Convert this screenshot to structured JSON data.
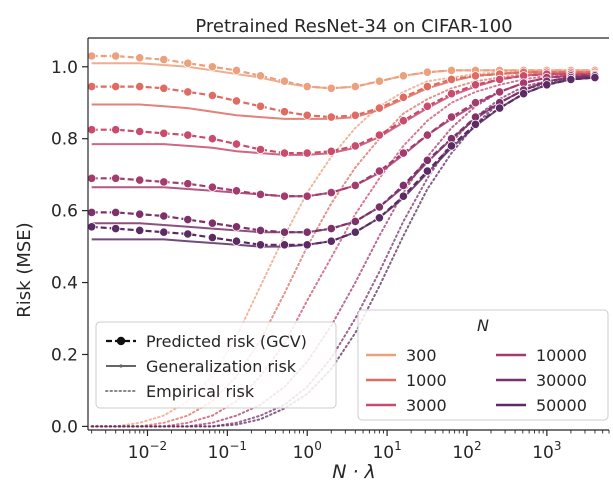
{
  "chart_data": {
    "type": "line",
    "title": "Pretrained ResNet-34 on CIFAR-100",
    "xlabel": "N · λ",
    "ylabel": "Risk (MSE)",
    "xscale": "log",
    "xlim": [
      0.0018,
      6000
    ],
    "ylim": [
      -0.01,
      1.08
    ],
    "xticks": [
      {
        "value": 0.01,
        "label": "10",
        "exp": "−2"
      },
      {
        "value": 0.1,
        "label": "10",
        "exp": "−1"
      },
      {
        "value": 1,
        "label": "10",
        "exp": "0"
      },
      {
        "value": 10,
        "label": "10",
        "exp": "1"
      },
      {
        "value": 100,
        "label": "10",
        "exp": "2"
      },
      {
        "value": 1000,
        "label": "10",
        "exp": "3"
      }
    ],
    "yticks": [
      "0.0",
      "0.2",
      "0.4",
      "0.6",
      "0.8",
      "1.0"
    ],
    "ytick_values": [
      0.0,
      0.2,
      0.4,
      0.6,
      0.8,
      1.0
    ],
    "grid": false,
    "legend_style": {
      "title": "",
      "position": "lower-left",
      "entries": [
        {
          "label": "Predicted risk (GCV)",
          "style": "dashed-markers"
        },
        {
          "label": "Generalization risk",
          "style": "solid"
        },
        {
          "label": "Empirical risk",
          "style": "dotted"
        }
      ]
    },
    "legend_N": {
      "title": "N",
      "position": "lower-right",
      "entries": [
        {
          "label": "300",
          "color": "#eba07e"
        },
        {
          "label": "1000",
          "color": "#de6c62"
        },
        {
          "label": "3000",
          "color": "#c94c6e"
        },
        {
          "label": "10000",
          "color": "#a33b6f"
        },
        {
          "label": "30000",
          "color": "#7c3169"
        },
        {
          "label": "50000",
          "color": "#5b2b63"
        }
      ]
    },
    "x": [
      0.002,
      0.004,
      0.008,
      0.016,
      0.032,
      0.065,
      0.13,
      0.26,
      0.52,
      1.0,
      2.0,
      4.0,
      8.0,
      16,
      32,
      64,
      128,
      256,
      512,
      1000,
      2000,
      4000
    ],
    "series": [
      {
        "name": "300",
        "color": "#eba07e",
        "predicted": [
          1.03,
          1.03,
          1.025,
          1.02,
          1.01,
          1.0,
          0.99,
          0.975,
          0.96,
          0.945,
          0.94,
          0.945,
          0.96,
          0.975,
          0.985,
          0.99,
          0.99,
          0.99,
          0.99,
          0.99,
          0.99,
          0.99
        ],
        "generalization": [
          1.01,
          1.01,
          1.01,
          1.005,
          1.0,
          0.99,
          0.98,
          0.97,
          0.955,
          0.945,
          0.94,
          0.945,
          0.96,
          0.975,
          0.985,
          0.99,
          0.99,
          0.99,
          0.99,
          0.99,
          0.99,
          0.99
        ],
        "empirical": [
          0.0,
          0.0,
          0.01,
          0.03,
          0.07,
          0.14,
          0.25,
          0.39,
          0.53,
          0.65,
          0.75,
          0.83,
          0.89,
          0.93,
          0.96,
          0.97,
          0.98,
          0.985,
          0.985,
          0.99,
          0.99,
          0.99
        ]
      },
      {
        "name": "1000",
        "color": "#de6c62",
        "predicted": [
          0.945,
          0.945,
          0.945,
          0.94,
          0.93,
          0.92,
          0.905,
          0.89,
          0.875,
          0.865,
          0.86,
          0.865,
          0.885,
          0.915,
          0.945,
          0.965,
          0.975,
          0.98,
          0.985,
          0.985,
          0.985,
          0.985
        ],
        "generalization": [
          0.895,
          0.895,
          0.895,
          0.89,
          0.885,
          0.875,
          0.865,
          0.86,
          0.855,
          0.855,
          0.855,
          0.86,
          0.88,
          0.91,
          0.94,
          0.96,
          0.975,
          0.98,
          0.985,
          0.985,
          0.985,
          0.985
        ],
        "empirical": [
          0.0,
          0.0,
          0.0,
          0.01,
          0.03,
          0.07,
          0.14,
          0.24,
          0.37,
          0.5,
          0.62,
          0.72,
          0.8,
          0.87,
          0.91,
          0.94,
          0.96,
          0.97,
          0.98,
          0.98,
          0.985,
          0.985
        ]
      },
      {
        "name": "3000",
        "color": "#c94c6e",
        "predicted": [
          0.825,
          0.825,
          0.82,
          0.815,
          0.81,
          0.8,
          0.785,
          0.77,
          0.76,
          0.76,
          0.765,
          0.78,
          0.81,
          0.85,
          0.89,
          0.925,
          0.95,
          0.965,
          0.975,
          0.98,
          0.98,
          0.98
        ],
        "generalization": [
          0.785,
          0.785,
          0.785,
          0.785,
          0.78,
          0.775,
          0.765,
          0.76,
          0.755,
          0.755,
          0.76,
          0.775,
          0.805,
          0.845,
          0.885,
          0.92,
          0.945,
          0.965,
          0.975,
          0.98,
          0.98,
          0.98
        ],
        "empirical": [
          0.0,
          0.0,
          0.0,
          0.0,
          0.01,
          0.03,
          0.07,
          0.14,
          0.23,
          0.35,
          0.47,
          0.59,
          0.69,
          0.78,
          0.85,
          0.9,
          0.93,
          0.95,
          0.965,
          0.975,
          0.98,
          0.98
        ]
      },
      {
        "name": "10000",
        "color": "#a33b6f",
        "predicted": [
          0.69,
          0.69,
          0.685,
          0.68,
          0.675,
          0.665,
          0.655,
          0.645,
          0.64,
          0.64,
          0.65,
          0.67,
          0.71,
          0.76,
          0.81,
          0.86,
          0.9,
          0.93,
          0.955,
          0.97,
          0.975,
          0.978
        ],
        "generalization": [
          0.665,
          0.665,
          0.665,
          0.665,
          0.66,
          0.655,
          0.65,
          0.645,
          0.64,
          0.64,
          0.65,
          0.67,
          0.705,
          0.755,
          0.81,
          0.855,
          0.895,
          0.93,
          0.955,
          0.97,
          0.975,
          0.978
        ],
        "empirical": [
          0.0,
          0.0,
          0.0,
          0.0,
          0.0,
          0.01,
          0.03,
          0.06,
          0.11,
          0.18,
          0.28,
          0.4,
          0.53,
          0.65,
          0.75,
          0.83,
          0.89,
          0.93,
          0.955,
          0.97,
          0.975,
          0.978
        ]
      },
      {
        "name": "30000",
        "color": "#7c3169",
        "predicted": [
          0.595,
          0.595,
          0.59,
          0.585,
          0.575,
          0.565,
          0.555,
          0.545,
          0.54,
          0.54,
          0.55,
          0.57,
          0.61,
          0.67,
          0.74,
          0.8,
          0.86,
          0.9,
          0.935,
          0.96,
          0.97,
          0.975
        ],
        "generalization": [
          0.565,
          0.565,
          0.565,
          0.56,
          0.555,
          0.55,
          0.545,
          0.54,
          0.54,
          0.54,
          0.55,
          0.57,
          0.61,
          0.665,
          0.735,
          0.8,
          0.855,
          0.9,
          0.935,
          0.96,
          0.97,
          0.975
        ],
        "empirical": [
          0.0,
          0.0,
          0.0,
          0.0,
          0.0,
          0.0,
          0.01,
          0.03,
          0.06,
          0.11,
          0.19,
          0.3,
          0.43,
          0.57,
          0.69,
          0.79,
          0.86,
          0.91,
          0.945,
          0.96,
          0.97,
          0.975
        ]
      },
      {
        "name": "50000",
        "color": "#5b2b63",
        "predicted": [
          0.555,
          0.55,
          0.545,
          0.54,
          0.535,
          0.525,
          0.515,
          0.505,
          0.505,
          0.505,
          0.515,
          0.54,
          0.58,
          0.64,
          0.71,
          0.78,
          0.84,
          0.885,
          0.925,
          0.95,
          0.965,
          0.97
        ],
        "generalization": [
          0.52,
          0.52,
          0.52,
          0.52,
          0.515,
          0.51,
          0.505,
          0.5,
          0.5,
          0.505,
          0.515,
          0.54,
          0.58,
          0.635,
          0.705,
          0.775,
          0.835,
          0.885,
          0.925,
          0.95,
          0.965,
          0.97
        ],
        "empirical": [
          0.0,
          0.0,
          0.0,
          0.0,
          0.0,
          0.0,
          0.005,
          0.02,
          0.05,
          0.09,
          0.16,
          0.26,
          0.39,
          0.53,
          0.66,
          0.76,
          0.84,
          0.9,
          0.935,
          0.955,
          0.965,
          0.97
        ]
      }
    ]
  }
}
